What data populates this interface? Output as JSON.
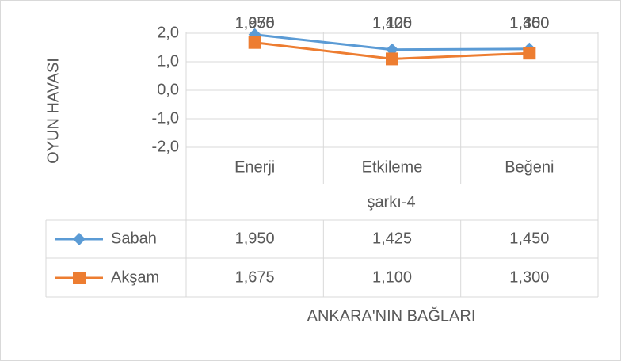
{
  "chart_data": {
    "type": "line",
    "categories": [
      "Enerji",
      "Etkileme",
      "Beğeni"
    ],
    "group_label": "şarkı-4",
    "x_axis_title": "ANKARA'NIN BAĞLARI",
    "y_axis_title": "OYUN HAVASI",
    "ylim": [
      -2,
      2
    ],
    "yticks": [
      {
        "value": 2,
        "label": "2,0"
      },
      {
        "value": 1,
        "label": "1,0"
      },
      {
        "value": 0,
        "label": "0,0"
      },
      {
        "value": -1,
        "label": "-1,0"
      },
      {
        "value": -2,
        "label": "-2,0"
      }
    ],
    "grid": true,
    "series": [
      {
        "name": "Sabah",
        "color": "#5b9bd5",
        "marker": "diamond",
        "values": [
          1.95,
          1.425,
          1.45
        ],
        "value_labels": [
          "1,950",
          "1,425",
          "1,450"
        ]
      },
      {
        "name": "Akşam",
        "color": "#ed7d31",
        "marker": "square",
        "values": [
          1.675,
          1.1,
          1.3
        ],
        "value_labels": [
          "1,675",
          "1,100",
          "1,300"
        ]
      }
    ]
  }
}
